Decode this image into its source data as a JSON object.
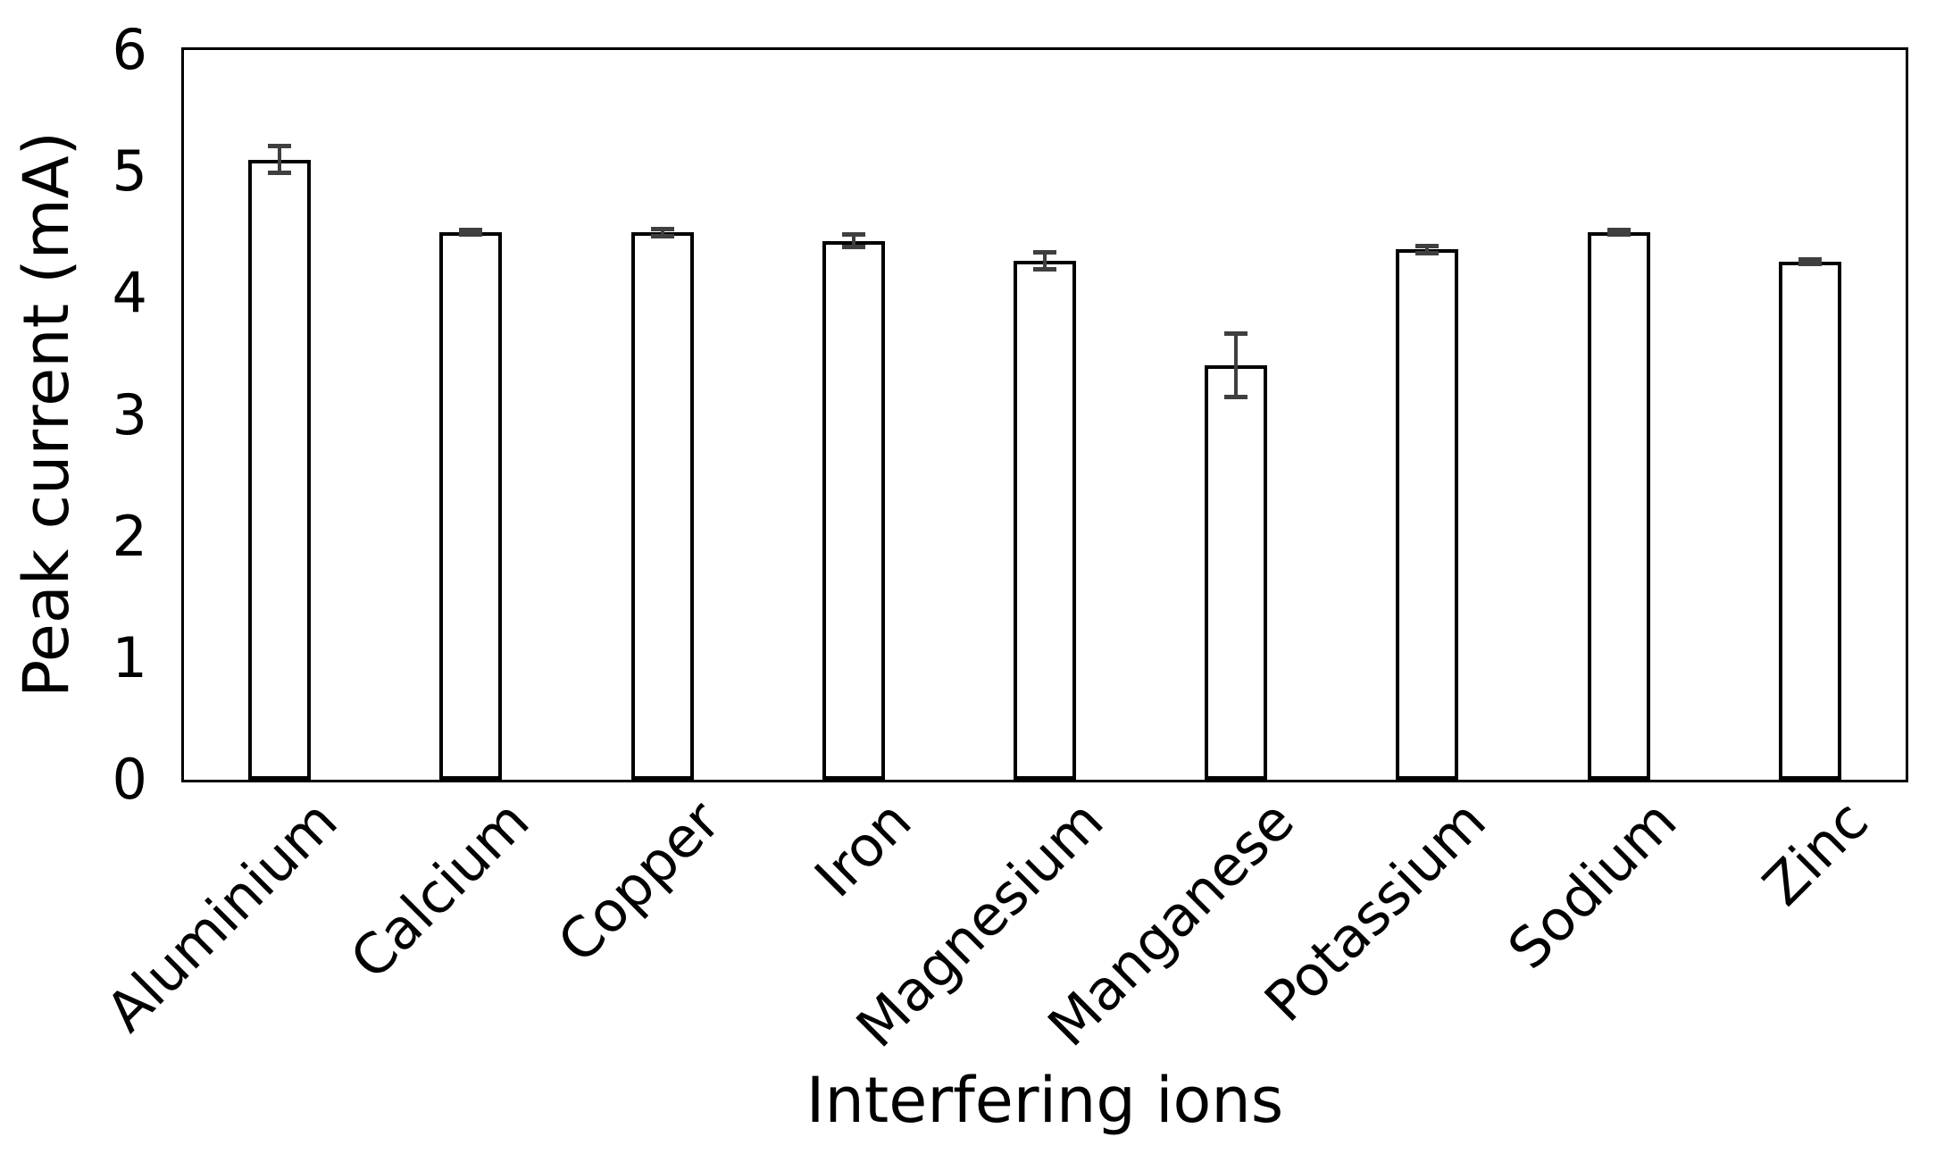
{
  "chart_data": {
    "type": "bar",
    "title": "",
    "xlabel": "Interfering ions",
    "ylabel": "Peak current (mA)",
    "categories": [
      "Aluminium",
      "Calcium",
      "Copper",
      "Iron",
      "Magnesium",
      "Manganese",
      "Potassium",
      "Sodium",
      "Zinc"
    ],
    "values": [
      5.1,
      4.5,
      4.5,
      4.43,
      4.27,
      3.41,
      4.36,
      4.5,
      4.26
    ],
    "errors": [
      0.11,
      0.02,
      0.03,
      0.05,
      0.07,
      0.26,
      0.03,
      0.02,
      0.02
    ],
    "ylim": [
      0,
      6
    ],
    "yticks": [
      0,
      1,
      2,
      3,
      4,
      5,
      6
    ],
    "grid": "off",
    "legend": "none",
    "bar_fill_color": "#ffffff",
    "bar_border_color": "#000000",
    "axis_color": "#000000",
    "error_bar_color": "#3f3f3f"
  }
}
